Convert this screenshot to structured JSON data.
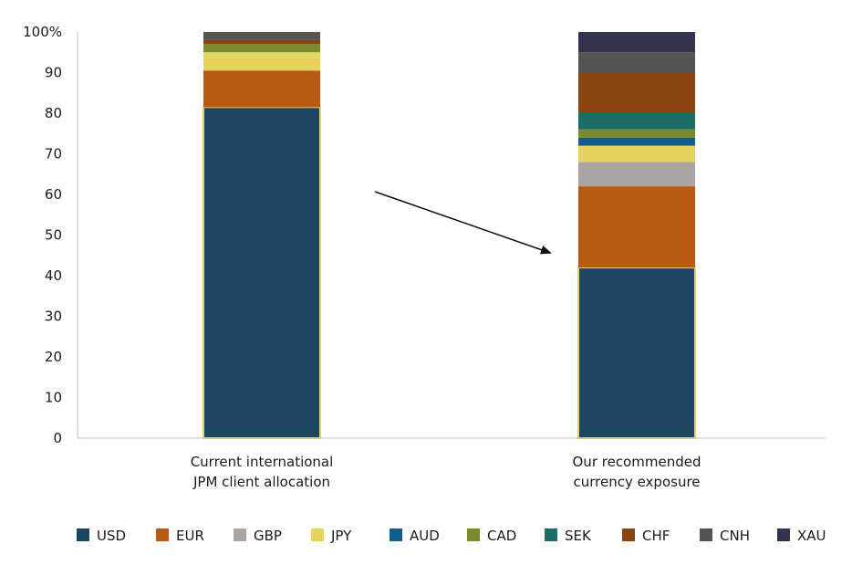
{
  "chart_data": {
    "type": "bar",
    "stacked": true,
    "categories": [
      [
        "Current international",
        "JPM client allocation"
      ],
      [
        "Our recommended",
        "currency exposure"
      ]
    ],
    "y_ticks": [
      "0",
      "10",
      "20",
      "30",
      "40",
      "50",
      "60",
      "70",
      "80",
      "90",
      "100%"
    ],
    "ylim": [
      0,
      100
    ],
    "legend_position": "bottom",
    "series": [
      {
        "name": "USD",
        "color": "#1c4660",
        "values": [
          81.5,
          42
        ]
      },
      {
        "name": "EUR",
        "color": "#b85a14",
        "values": [
          9,
          20
        ]
      },
      {
        "name": "GBP",
        "color": "#a9a5a2",
        "values": [
          0,
          6
        ]
      },
      {
        "name": "JPY",
        "color": "#e6d45e",
        "values": [
          4.5,
          4
        ]
      },
      {
        "name": "AUD",
        "color": "#135d8d",
        "values": [
          0,
          2
        ]
      },
      {
        "name": "CAD",
        "color": "#7c8a2c",
        "values": [
          2,
          2
        ]
      },
      {
        "name": "SEK",
        "color": "#1c6d68",
        "values": [
          0,
          4
        ]
      },
      {
        "name": "CHF",
        "color": "#8b4310",
        "values": [
          1,
          10
        ]
      },
      {
        "name": "CNH",
        "color": "#545454",
        "values": [
          2,
          5
        ]
      },
      {
        "name": "XAU",
        "color": "#33324f",
        "values": [
          0,
          5
        ]
      }
    ],
    "highlight_outline": "#e6d45e",
    "annotation": {
      "type": "arrow",
      "from_category": 0,
      "to_category": 1
    }
  }
}
